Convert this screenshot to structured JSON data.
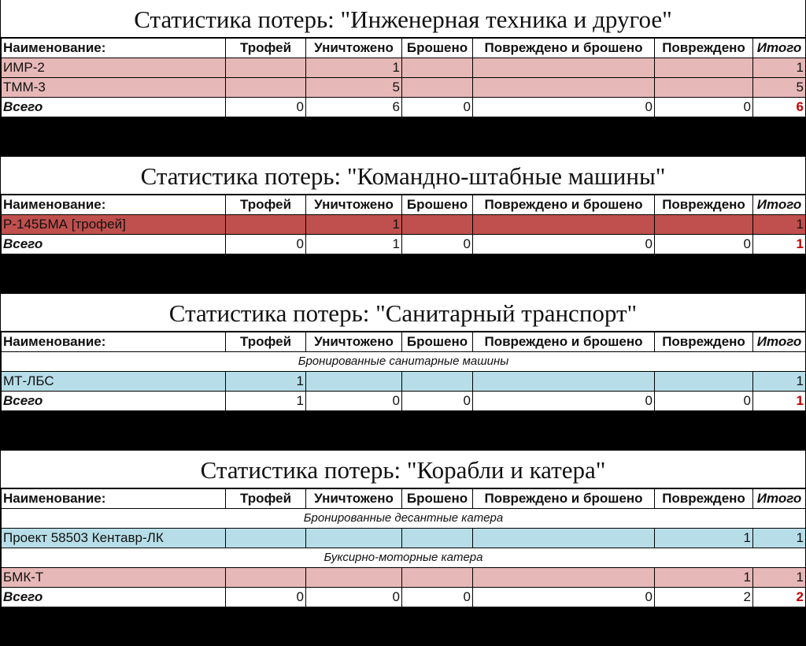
{
  "colors": {
    "pink": "#e6b8b7",
    "red": "#c0504d",
    "blue": "#b7dee8",
    "total_accent": "#c00000"
  },
  "columns": [
    "Наименование:",
    "Трофей",
    "Уничтожено",
    "Брошено",
    "Повреждено и брошено",
    "Повреждено",
    "Итого"
  ],
  "total_label": "Всего",
  "tables": [
    {
      "title": "Статистика потерь: \"Инженерная техника и другое\"",
      "rows": [
        {
          "type": "item",
          "color": "pink",
          "cells": [
            "ИМР-2",
            "",
            "1",
            "",
            "",
            "",
            "1"
          ]
        },
        {
          "type": "item",
          "color": "pink",
          "cells": [
            "ТММ-3",
            "",
            "5",
            "",
            "",
            "",
            "5"
          ]
        }
      ],
      "totals": [
        "0",
        "6",
        "0",
        "0",
        "0",
        "6"
      ]
    },
    {
      "title": "Статистика потерь: \"Командно-штабные машины\"",
      "rows": [
        {
          "type": "item",
          "color": "red",
          "cells": [
            "Р-145БМА [трофей]",
            "",
            "1",
            "",
            "",
            "",
            "1"
          ]
        }
      ],
      "totals": [
        "0",
        "1",
        "0",
        "0",
        "0",
        "1"
      ]
    },
    {
      "title": "Статистика потерь: \"Санитарный транспорт\"",
      "rows": [
        {
          "type": "sub",
          "label": "Бронированные санитарные машины"
        },
        {
          "type": "item",
          "color": "blue",
          "cells": [
            "МТ-ЛБС",
            "1",
            "",
            "",
            "",
            "",
            "1"
          ]
        }
      ],
      "totals": [
        "1",
        "0",
        "0",
        "0",
        "0",
        "1"
      ]
    },
    {
      "title": "Статистика потерь: \"Корабли и катера\"",
      "rows": [
        {
          "type": "sub",
          "label": "Бронированные десантные катера"
        },
        {
          "type": "item",
          "color": "blue",
          "cells": [
            "Проект 58503 Кентавр-ЛК",
            "",
            "",
            "",
            "",
            "1",
            "1"
          ]
        },
        {
          "type": "sub",
          "label": "Буксирно-моторные катера"
        },
        {
          "type": "item",
          "color": "pink",
          "cells": [
            "БМК-Т",
            "",
            "",
            "",
            "",
            "1",
            "1"
          ]
        }
      ],
      "totals": [
        "0",
        "0",
        "0",
        "0",
        "2",
        "2"
      ]
    }
  ]
}
